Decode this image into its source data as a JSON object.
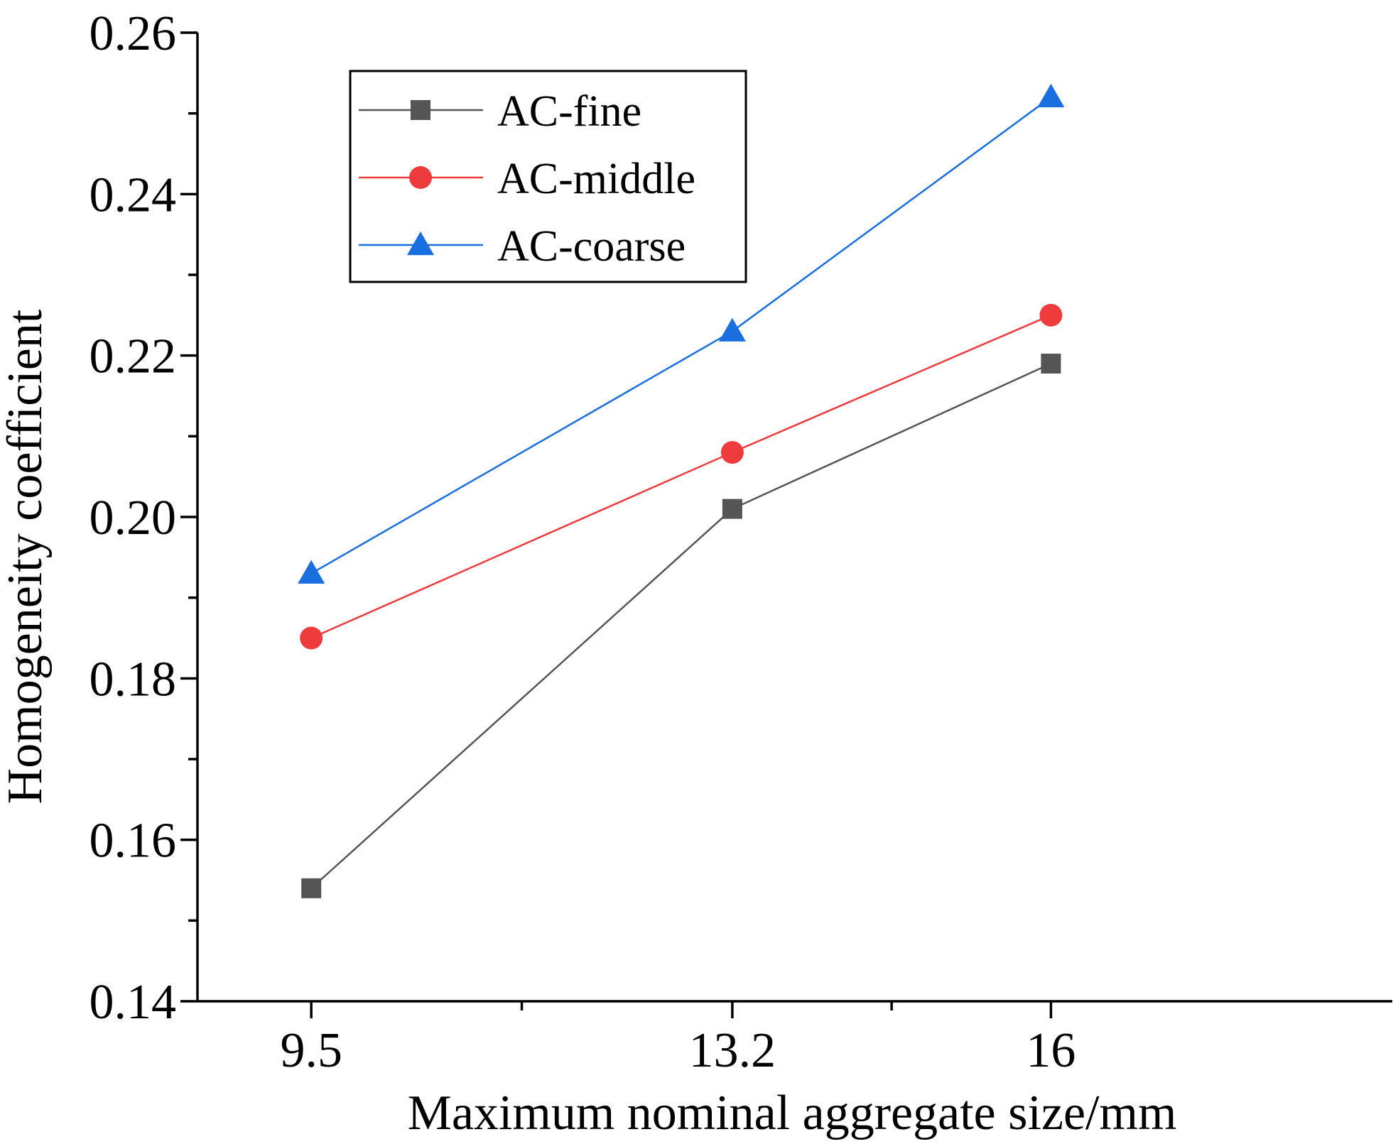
{
  "chart_data": {
    "type": "line",
    "title": "",
    "xlabel": "Maximum nominal aggregate size/mm",
    "ylabel": "Homogeneity coefficient",
    "categories": [
      "9.5",
      "13.2",
      "16"
    ],
    "x": [
      9.5,
      13.2,
      16
    ],
    "xlim": [
      8.5,
      19.0
    ],
    "ylim": [
      0.14,
      0.26
    ],
    "yticks": [
      0.14,
      0.16,
      0.18,
      0.2,
      0.22,
      0.24,
      0.26
    ],
    "ytick_labels": [
      "0.14",
      "0.16",
      "0.18",
      "0.20",
      "0.22",
      "0.24",
      "0.26"
    ],
    "xtick_labels": [
      "9.5",
      "13.2",
      "16"
    ],
    "grid": false,
    "legend_position": "top-left",
    "series": [
      {
        "name": "AC-fine",
        "values": [
          0.154,
          0.201,
          0.219
        ],
        "color": "#555555",
        "marker": "square"
      },
      {
        "name": "AC-middle",
        "values": [
          0.185,
          0.208,
          0.225
        ],
        "color": "#EE3B3B",
        "marker": "circle"
      },
      {
        "name": "AC-coarse",
        "values": [
          0.193,
          0.223,
          0.252
        ],
        "color": "#1A6FE0",
        "marker": "triangle"
      }
    ]
  }
}
